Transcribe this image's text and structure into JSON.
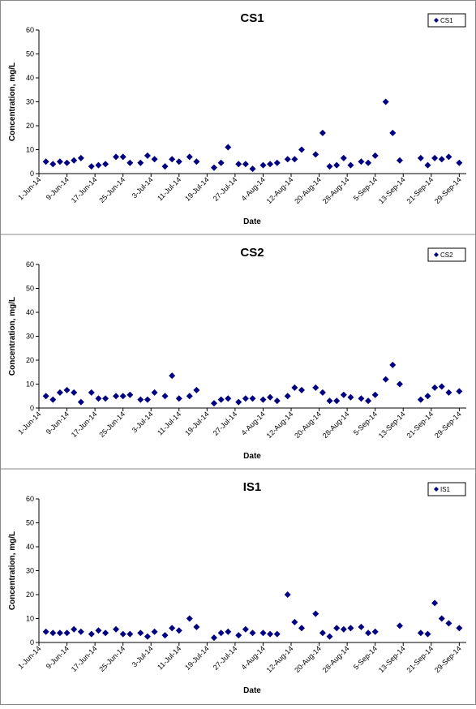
{
  "chart_data": [
    {
      "type": "scatter",
      "title": "CS1",
      "x_label": "Date",
      "y_label": "Concentration, mg/L",
      "legend": "top-right",
      "xlim": [
        "2014-06-01",
        "2014-10-01"
      ],
      "xticks": [
        {
          "value": "2014-06-01",
          "label": "1-Jun-14"
        },
        {
          "value": "2014-06-09",
          "label": "9-Jun-14"
        },
        {
          "value": "2014-06-17",
          "label": "17-Jun-14"
        },
        {
          "value": "2014-06-25",
          "label": "25-Jun-14"
        },
        {
          "value": "2014-07-03",
          "label": "3-Jul-14"
        },
        {
          "value": "2014-07-11",
          "label": "11-Jul-14"
        },
        {
          "value": "2014-07-19",
          "label": "19-Jul-14"
        },
        {
          "value": "2014-07-27",
          "label": "27-Jul-14"
        },
        {
          "value": "2014-08-04",
          "label": "4-Aug-14"
        },
        {
          "value": "2014-08-12",
          "label": "12-Aug-14"
        },
        {
          "value": "2014-08-20",
          "label": "20-Aug-14"
        },
        {
          "value": "2014-08-28",
          "label": "28-Aug-14"
        },
        {
          "value": "2014-09-05",
          "label": "5-Sep-14"
        },
        {
          "value": "2014-09-13",
          "label": "13-Sep-14"
        },
        {
          "value": "2014-09-21",
          "label": "21-Sep-14"
        },
        {
          "value": "2014-09-29",
          "label": "29-Sep-14"
        }
      ],
      "ylim": [
        0,
        60
      ],
      "yticks": [
        0,
        10,
        20,
        30,
        40,
        50,
        60
      ],
      "series": [
        {
          "name": "CS1",
          "color": "#000080",
          "x": [
            "2014-06-03",
            "2014-06-05",
            "2014-06-07",
            "2014-06-09",
            "2014-06-11",
            "2014-06-13",
            "2014-06-16",
            "2014-06-18",
            "2014-06-20",
            "2014-06-23",
            "2014-06-25",
            "2014-06-27",
            "2014-06-30",
            "2014-07-02",
            "2014-07-04",
            "2014-07-07",
            "2014-07-09",
            "2014-07-11",
            "2014-07-14",
            "2014-07-16",
            "2014-07-21",
            "2014-07-23",
            "2014-07-25",
            "2014-07-28",
            "2014-07-30",
            "2014-08-01",
            "2014-08-04",
            "2014-08-06",
            "2014-08-08",
            "2014-08-11",
            "2014-08-13",
            "2014-08-15",
            "2014-08-19",
            "2014-08-21",
            "2014-08-23",
            "2014-08-25",
            "2014-08-27",
            "2014-08-29",
            "2014-09-01",
            "2014-09-03",
            "2014-09-05",
            "2014-09-08",
            "2014-09-10",
            "2014-09-12",
            "2014-09-18",
            "2014-09-20",
            "2014-09-22",
            "2014-09-24",
            "2014-09-26",
            "2014-09-29"
          ],
          "values": [
            5,
            4,
            5,
            4.5,
            5.5,
            6.5,
            3,
            3.5,
            4,
            7,
            7,
            4.5,
            4.5,
            7.5,
            6,
            3,
            6,
            5,
            7,
            5,
            2.5,
            4.5,
            11,
            4,
            4,
            2,
            3.5,
            4,
            4.5,
            6,
            6,
            10,
            8,
            17,
            3,
            3.5,
            6.5,
            3.5,
            5,
            4.5,
            7.5,
            30,
            17,
            5.5,
            6.5,
            3.5,
            6.5,
            6,
            7,
            4.5
          ]
        }
      ]
    },
    {
      "type": "scatter",
      "title": "CS2",
      "x_label": "Date",
      "y_label": "Concentration, mg/L",
      "legend": "top-right",
      "xlim": [
        "2014-06-01",
        "2014-10-01"
      ],
      "xticks": [
        {
          "value": "2014-06-01",
          "label": "1-Jun-14"
        },
        {
          "value": "2014-06-09",
          "label": "9-Jun-14"
        },
        {
          "value": "2014-06-17",
          "label": "17-Jun-14"
        },
        {
          "value": "2014-06-25",
          "label": "25-Jun-14"
        },
        {
          "value": "2014-07-03",
          "label": "3-Jul-14"
        },
        {
          "value": "2014-07-11",
          "label": "11-Jul-14"
        },
        {
          "value": "2014-07-19",
          "label": "19-Jul-14"
        },
        {
          "value": "2014-07-27",
          "label": "27-Jul-14"
        },
        {
          "value": "2014-08-04",
          "label": "4-Aug-14"
        },
        {
          "value": "2014-08-12",
          "label": "12-Aug-14"
        },
        {
          "value": "2014-08-20",
          "label": "20-Aug-14"
        },
        {
          "value": "2014-08-28",
          "label": "28-Aug-14"
        },
        {
          "value": "2014-09-05",
          "label": "5-Sep-14"
        },
        {
          "value": "2014-09-13",
          "label": "13-Sep-14"
        },
        {
          "value": "2014-09-21",
          "label": "21-Sep-14"
        },
        {
          "value": "2014-09-29",
          "label": "29-Sep-14"
        }
      ],
      "ylim": [
        0,
        60
      ],
      "yticks": [
        0,
        10,
        20,
        30,
        40,
        50,
        60
      ],
      "series": [
        {
          "name": "CS2",
          "color": "#000080",
          "x": [
            "2014-06-03",
            "2014-06-05",
            "2014-06-07",
            "2014-06-09",
            "2014-06-11",
            "2014-06-13",
            "2014-06-16",
            "2014-06-18",
            "2014-06-20",
            "2014-06-23",
            "2014-06-25",
            "2014-06-27",
            "2014-06-30",
            "2014-07-02",
            "2014-07-04",
            "2014-07-07",
            "2014-07-09",
            "2014-07-11",
            "2014-07-14",
            "2014-07-16",
            "2014-07-21",
            "2014-07-23",
            "2014-07-25",
            "2014-07-28",
            "2014-07-30",
            "2014-08-01",
            "2014-08-04",
            "2014-08-06",
            "2014-08-08",
            "2014-08-11",
            "2014-08-13",
            "2014-08-15",
            "2014-08-19",
            "2014-08-21",
            "2014-08-23",
            "2014-08-25",
            "2014-08-27",
            "2014-08-29",
            "2014-09-01",
            "2014-09-03",
            "2014-09-05",
            "2014-09-08",
            "2014-09-10",
            "2014-09-12",
            "2014-09-18",
            "2014-09-20",
            "2014-09-22",
            "2014-09-24",
            "2014-09-26",
            "2014-09-29"
          ],
          "values": [
            5,
            3.5,
            6.5,
            7.5,
            6.5,
            2.5,
            6.5,
            4,
            4,
            5,
            5,
            5.5,
            3.5,
            3.5,
            6.5,
            5,
            13.5,
            4,
            5,
            7.5,
            2,
            3.5,
            4,
            2.5,
            4,
            4,
            3.5,
            4.5,
            3,
            5,
            8.5,
            7.5,
            8.5,
            6.5,
            3,
            3,
            5.5,
            4.5,
            4,
            3,
            5.5,
            12,
            18,
            10,
            3.5,
            5,
            8.5,
            9,
            6.5,
            7
          ]
        }
      ]
    },
    {
      "type": "scatter",
      "title": "IS1",
      "x_label": "Date",
      "y_label": "Concentration, mg/L",
      "legend": "top-right",
      "xlim": [
        "2014-06-01",
        "2014-10-01"
      ],
      "xticks": [
        {
          "value": "2014-06-01",
          "label": "1-Jun-14"
        },
        {
          "value": "2014-06-09",
          "label": "9-Jun-14"
        },
        {
          "value": "2014-06-17",
          "label": "17-Jun-14"
        },
        {
          "value": "2014-06-25",
          "label": "25-Jun-14"
        },
        {
          "value": "2014-07-03",
          "label": "3-Jul-14"
        },
        {
          "value": "2014-07-11",
          "label": "11-Jul-14"
        },
        {
          "value": "2014-07-19",
          "label": "19-Jul-14"
        },
        {
          "value": "2014-07-27",
          "label": "27-Jul-14"
        },
        {
          "value": "2014-08-04",
          "label": "4-Aug-14"
        },
        {
          "value": "2014-08-12",
          "label": "12-Aug-14"
        },
        {
          "value": "2014-08-20",
          "label": "20-Aug-14"
        },
        {
          "value": "2014-08-28",
          "label": "28-Aug-14"
        },
        {
          "value": "2014-09-05",
          "label": "5-Sep-14"
        },
        {
          "value": "2014-09-13",
          "label": "13-Sep-14"
        },
        {
          "value": "2014-09-21",
          "label": "21-Sep-14"
        },
        {
          "value": "2014-09-29",
          "label": "29-Sep-14"
        }
      ],
      "ylim": [
        0,
        60
      ],
      "yticks": [
        0,
        10,
        20,
        30,
        40,
        50,
        60
      ],
      "series": [
        {
          "name": "IS1",
          "color": "#000080",
          "x": [
            "2014-06-03",
            "2014-06-05",
            "2014-06-07",
            "2014-06-09",
            "2014-06-11",
            "2014-06-13",
            "2014-06-16",
            "2014-06-18",
            "2014-06-20",
            "2014-06-23",
            "2014-06-25",
            "2014-06-27",
            "2014-06-30",
            "2014-07-02",
            "2014-07-04",
            "2014-07-07",
            "2014-07-09",
            "2014-07-11",
            "2014-07-14",
            "2014-07-16",
            "2014-07-21",
            "2014-07-23",
            "2014-07-25",
            "2014-07-28",
            "2014-07-30",
            "2014-08-01",
            "2014-08-04",
            "2014-08-06",
            "2014-08-08",
            "2014-08-11",
            "2014-08-13",
            "2014-08-15",
            "2014-08-19",
            "2014-08-21",
            "2014-08-23",
            "2014-08-25",
            "2014-08-27",
            "2014-08-29",
            "2014-09-01",
            "2014-09-03",
            "2014-09-05",
            "2014-09-12",
            "2014-09-18",
            "2014-09-20",
            "2014-09-22",
            "2014-09-24",
            "2014-09-26",
            "2014-09-29"
          ],
          "values": [
            4.5,
            4,
            4,
            4,
            5.5,
            4.5,
            3.5,
            5,
            4,
            5.5,
            3.5,
            3.5,
            4,
            2.5,
            4.5,
            3,
            6,
            5,
            10,
            6.5,
            2,
            4,
            4.5,
            3,
            5.5,
            4,
            4,
            3.5,
            3.5,
            20,
            8.5,
            6,
            12,
            4,
            2.5,
            6,
            5.5,
            6,
            6.5,
            4,
            4.5,
            7,
            4,
            3.5,
            16.5,
            10,
            8,
            6
          ]
        }
      ]
    }
  ]
}
